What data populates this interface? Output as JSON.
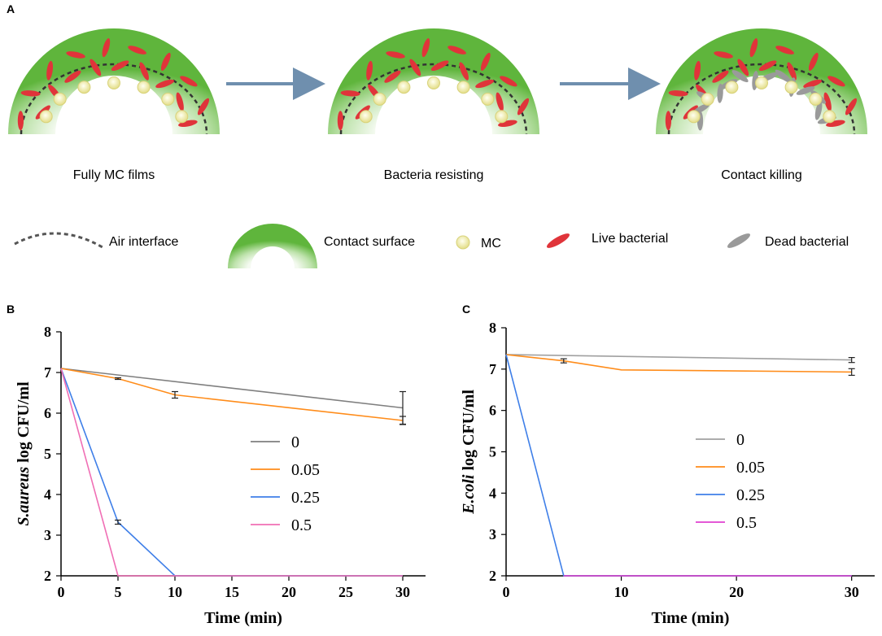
{
  "panels": {
    "a_letter": "A",
    "b_letter": "B",
    "c_letter": "C"
  },
  "scheme": {
    "captions": [
      "Fully MC films",
      "Bacteria resisting",
      "Contact killing"
    ],
    "legend": {
      "air_interface": "Air interface",
      "contact_surface": "Contact surface",
      "mc": "MC",
      "live": "Live bacterial",
      "dead": "Dead bacterial"
    },
    "colors": {
      "film_green": "#6cbf4a",
      "live_red": "#e0343a",
      "dead_gray": "#9a9a9a",
      "mc_yellow": "#f3efa8",
      "arrow": "#6f8fae"
    }
  },
  "chart_data": [
    {
      "type": "line",
      "panel": "B",
      "xlabel": "Time (min)",
      "ylabel_italic": "S.aureus",
      "ylabel_rest": " log CFU/ml",
      "xlim": [
        0,
        32
      ],
      "ylim": [
        2,
        8
      ],
      "xticks": [
        0,
        5,
        10,
        15,
        20,
        25,
        30
      ],
      "yticks": [
        2,
        3,
        4,
        5,
        6,
        7,
        8
      ],
      "legend_position": "center-right",
      "series": [
        {
          "name": "0",
          "color": "#7f7f7f",
          "x": [
            0,
            30
          ],
          "y": [
            7.1,
            6.13
          ],
          "err": [
            0,
            0.4
          ]
        },
        {
          "name": "0.05",
          "color": "#ff8c1a",
          "x": [
            0,
            5,
            10,
            30
          ],
          "y": [
            7.1,
            6.85,
            6.45,
            5.82
          ],
          "err": [
            0,
            0.02,
            0.08,
            0.1
          ]
        },
        {
          "name": "0.25",
          "color": "#3f7fe8",
          "x": [
            0,
            5,
            10,
            30
          ],
          "y": [
            7.1,
            3.32,
            2.0,
            2.0
          ],
          "err": [
            0,
            0.05,
            0,
            0
          ]
        },
        {
          "name": "0.5",
          "color": "#f06fb5",
          "x": [
            0,
            5,
            30
          ],
          "y": [
            7.1,
            2.0,
            2.0
          ],
          "err": [
            0,
            0,
            0
          ]
        }
      ]
    },
    {
      "type": "line",
      "panel": "C",
      "xlabel": "Time (min)",
      "ylabel_italic": "E.coli",
      "ylabel_rest": " log CFU/ml",
      "xlim": [
        0,
        32
      ],
      "ylim": [
        2,
        8
      ],
      "xticks": [
        0,
        10,
        20,
        30
      ],
      "yticks": [
        2,
        3,
        4,
        5,
        6,
        7,
        8
      ],
      "legend_position": "center-right",
      "series": [
        {
          "name": "0",
          "color": "#a0a0a0",
          "x": [
            0,
            30
          ],
          "y": [
            7.35,
            7.22
          ],
          "err": [
            0,
            0.06
          ]
        },
        {
          "name": "0.05",
          "color": "#ff8c1a",
          "x": [
            0,
            5,
            10,
            30
          ],
          "y": [
            7.35,
            7.2,
            6.98,
            6.93
          ],
          "err": [
            0,
            0.05,
            0,
            0.08
          ]
        },
        {
          "name": "0.25",
          "color": "#3f7fe8",
          "x": [
            0,
            5,
            30
          ],
          "y": [
            7.35,
            2.0,
            2.0
          ],
          "err": [
            0,
            0,
            0
          ]
        },
        {
          "name": "0.5",
          "color": "#e040d0",
          "x": [
            5,
            30
          ],
          "y": [
            2.0,
            2.0
          ],
          "err": [
            0,
            0
          ]
        }
      ]
    }
  ]
}
